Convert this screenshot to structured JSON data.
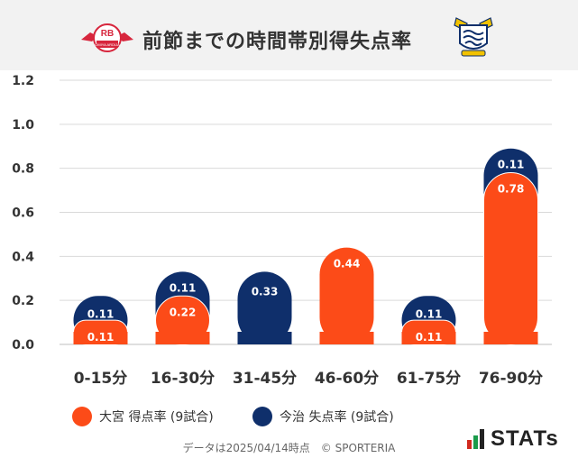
{
  "header": {
    "title": "前節までの時間帯別得失点率",
    "left_logo_text": "RB",
    "left_logo_sub": "OMIYA ARDIJA"
  },
  "chart_data": {
    "type": "bar",
    "categories": [
      "0-15分",
      "16-30分",
      "31-45分",
      "46-60分",
      "61-75分",
      "76-90分"
    ],
    "series": [
      {
        "name": "大宮 得点率 (9試合)",
        "color": "#fc4b18",
        "values": [
          0.11,
          0.22,
          0,
          0.44,
          0.11,
          0.78
        ],
        "labels": [
          "0.11",
          "0.22",
          "",
          "0.44",
          "0.11",
          "0.78"
        ]
      },
      {
        "name": "今治 失点率 (9試合)",
        "color": "#0f2f6b",
        "values": [
          0.11,
          0.11,
          0.33,
          0,
          0.11,
          0.11
        ],
        "labels": [
          "0.11",
          "0.11",
          "0.33",
          "",
          "0.11",
          "0.11"
        ]
      }
    ],
    "stacked": true,
    "ylim": [
      0,
      1.2
    ],
    "yticks": [
      "0.0",
      "0.2",
      "0.4",
      "0.6",
      "0.8",
      "1.0",
      "1.2"
    ],
    "grid": true,
    "legend_position": "bottom"
  },
  "legend": {
    "item1": "大宮 得点率 (9試合)",
    "item2": "今治 失点率 (9試合)"
  },
  "footer": {
    "note": "データは2025/04/14時点　© SPORTERIA",
    "brand": "STATs"
  },
  "colors": {
    "scored": "#fc4b18",
    "conceded": "#0f2f6b",
    "grid": "#d9d9d9",
    "brand_bars": [
      "#d12a1f",
      "#1a9b4a",
      "#222222"
    ]
  }
}
